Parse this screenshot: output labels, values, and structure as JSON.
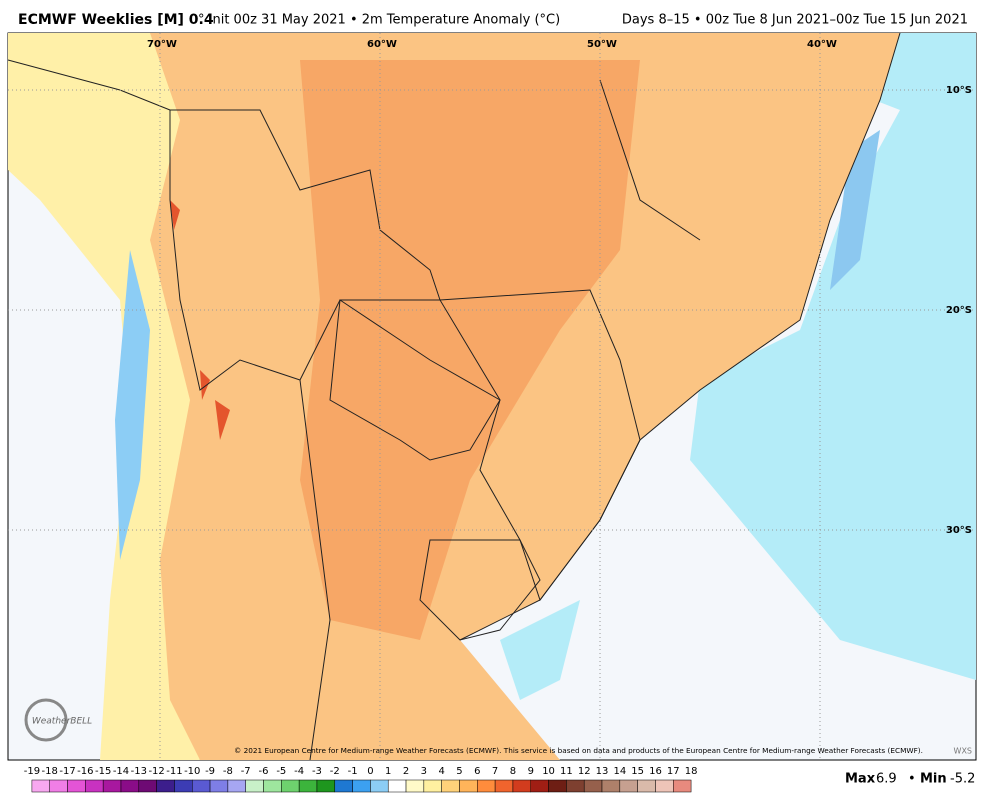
{
  "header": {
    "title_bold": "ECMWF Weeklies [M] 0.4",
    "title_rest": "° Init 00z 31 May 2021 • 2m Temperature Anomaly (°C)",
    "valid": "Days 8–15 • 00z Tue 8 Jun 2021–00z Tue 15 Jun 2021"
  },
  "map": {
    "lon_labels": [
      "70°W",
      "60°W",
      "50°W",
      "40°W"
    ],
    "lat_labels": [
      "10°S",
      "20°S",
      "30°S"
    ],
    "logo": "WeatherBELL",
    "copyright": "© 2021 European Centre for Medium-range Weather Forecasts (ECMWF). This service is based on data and products of the European Centre for Medium-range Weather Forecasts (ECMWF).",
    "corner": "WXS"
  },
  "colorbar": {
    "ticks": [
      -19,
      -18,
      -17,
      -16,
      -15,
      -14,
      -13,
      -12,
      -11,
      -10,
      -9,
      -8,
      -7,
      -6,
      -5,
      -4,
      -3,
      -2,
      -1,
      0,
      1,
      2,
      3,
      4,
      5,
      6,
      7,
      8,
      9,
      10,
      11,
      12,
      13,
      14,
      15,
      16,
      17,
      18
    ],
    "colors": [
      "#f7a8f0",
      "#f07ee6",
      "#e454d6",
      "#c832c0",
      "#a8189f",
      "#8a0c88",
      "#6e0a74",
      "#3c1e8c",
      "#3c3cb4",
      "#5a5ad2",
      "#7e7ee6",
      "#a6a6f2",
      "#c8f0c8",
      "#9ee69e",
      "#6ed26e",
      "#3cb43c",
      "#1e961e",
      "#1e78d2",
      "#3ca0f0",
      "#8ccdf5",
      "#ffffff",
      "#fffac8",
      "#fff0a0",
      "#ffd27a",
      "#ffb45a",
      "#ff8c3c",
      "#f0642d",
      "#d23c1e",
      "#a01e14",
      "#6e1e14",
      "#7e4030",
      "#96604c",
      "#ae806a",
      "#c6a090",
      "#dabaaa",
      "#eec4b8",
      "#e88a7e"
    ]
  },
  "stats": {
    "max_label": "Max",
    "max": 6.9,
    "min_label": "Min",
    "min": -5.2
  }
}
